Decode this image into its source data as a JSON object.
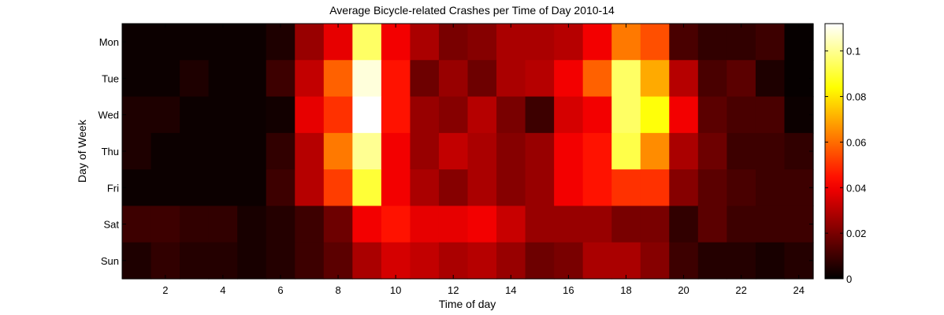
{
  "chart_data": {
    "type": "heatmap",
    "title": "Average Bicycle-related Crashes per Time of Day 2010-14",
    "xlabel": "Time of day",
    "ylabel": "Day of Week",
    "x": [
      1,
      2,
      3,
      4,
      5,
      6,
      7,
      8,
      9,
      10,
      11,
      12,
      13,
      14,
      15,
      16,
      17,
      18,
      19,
      20,
      21,
      22,
      23,
      24
    ],
    "x_ticks": [
      "2",
      "4",
      "6",
      "8",
      "10",
      "12",
      "14",
      "16",
      "18",
      "20",
      "22",
      "24"
    ],
    "x_tick_values": [
      2,
      4,
      6,
      8,
      10,
      12,
      14,
      16,
      18,
      20,
      22,
      24
    ],
    "y_categories": [
      "Mon",
      "Tue",
      "Wed",
      "Thu",
      "Fri",
      "Sat",
      "Sun"
    ],
    "values": [
      [
        0.002,
        0.002,
        0.002,
        0.002,
        0.002,
        0.005,
        0.025,
        0.038,
        0.095,
        0.04,
        0.028,
        0.02,
        0.022,
        0.028,
        0.028,
        0.03,
        0.04,
        0.062,
        0.055,
        0.012,
        0.008,
        0.008,
        0.01,
        0.001
      ],
      [
        0.002,
        0.002,
        0.005,
        0.002,
        0.002,
        0.01,
        0.032,
        0.058,
        0.108,
        0.045,
        0.018,
        0.025,
        0.018,
        0.028,
        0.03,
        0.04,
        0.058,
        0.095,
        0.07,
        0.03,
        0.012,
        0.015,
        0.005,
        0.001
      ],
      [
        0.005,
        0.005,
        0.002,
        0.002,
        0.002,
        0.003,
        0.038,
        0.05,
        0.112,
        0.045,
        0.025,
        0.022,
        0.03,
        0.02,
        0.01,
        0.035,
        0.04,
        0.095,
        0.085,
        0.04,
        0.015,
        0.012,
        0.012,
        0.002
      ],
      [
        0.005,
        0.002,
        0.002,
        0.002,
        0.002,
        0.008,
        0.03,
        0.062,
        0.1,
        0.04,
        0.025,
        0.032,
        0.028,
        0.022,
        0.025,
        0.04,
        0.045,
        0.092,
        0.065,
        0.028,
        0.018,
        0.01,
        0.01,
        0.008
      ],
      [
        0.002,
        0.002,
        0.002,
        0.002,
        0.002,
        0.01,
        0.03,
        0.052,
        0.09,
        0.04,
        0.028,
        0.022,
        0.028,
        0.022,
        0.025,
        0.04,
        0.045,
        0.05,
        0.05,
        0.022,
        0.015,
        0.012,
        0.01,
        0.01
      ],
      [
        0.01,
        0.01,
        0.008,
        0.008,
        0.004,
        0.006,
        0.01,
        0.018,
        0.04,
        0.045,
        0.038,
        0.038,
        0.04,
        0.033,
        0.025,
        0.025,
        0.025,
        0.02,
        0.02,
        0.008,
        0.015,
        0.01,
        0.01,
        0.01
      ],
      [
        0.005,
        0.008,
        0.006,
        0.006,
        0.004,
        0.006,
        0.01,
        0.015,
        0.028,
        0.035,
        0.032,
        0.028,
        0.03,
        0.025,
        0.018,
        0.02,
        0.028,
        0.028,
        0.022,
        0.01,
        0.006,
        0.006,
        0.004,
        0.006
      ]
    ],
    "colormap": "hot",
    "colorbar": {
      "min": 0,
      "max": 0.112,
      "ticks": [
        "0",
        "0.02",
        "0.04",
        "0.06",
        "0.08",
        "0.1"
      ],
      "tick_values": [
        0,
        0.02,
        0.04,
        0.06,
        0.08,
        0.1
      ]
    },
    "legend": "colorbar right",
    "grid": false
  }
}
